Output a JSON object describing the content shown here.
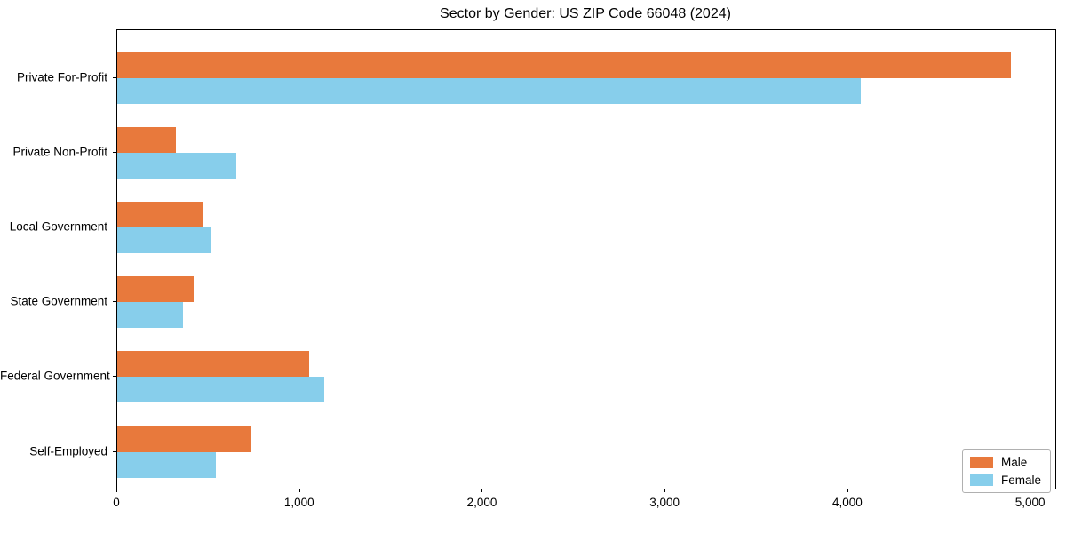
{
  "chart_data": {
    "type": "bar",
    "orientation": "horizontal",
    "title": "Sector by Gender: US ZIP Code 66048 (2024)",
    "categories": [
      "Private For-Profit",
      "Private Non-Profit",
      "Local Government",
      "State Government",
      "Federal Government",
      "Self-Employed"
    ],
    "series": [
      {
        "name": "Male",
        "color": "#E8793C",
        "values": [
          4890,
          320,
          470,
          420,
          1050,
          730
        ]
      },
      {
        "name": "Female",
        "color": "#87CEEB",
        "values": [
          4070,
          650,
          510,
          360,
          1130,
          540
        ]
      }
    ],
    "xlim": [
      0,
      5133
    ],
    "xticks": [
      0,
      1000,
      2000,
      3000,
      4000,
      5000
    ],
    "xtick_labels": [
      "0",
      "1,000",
      "2,000",
      "3,000",
      "4,000",
      "5,000"
    ],
    "xlabel": "",
    "ylabel": "",
    "grid": false,
    "legend_position": "lower right",
    "plot_border_color": "#000000",
    "background_color": "#ffffff"
  }
}
